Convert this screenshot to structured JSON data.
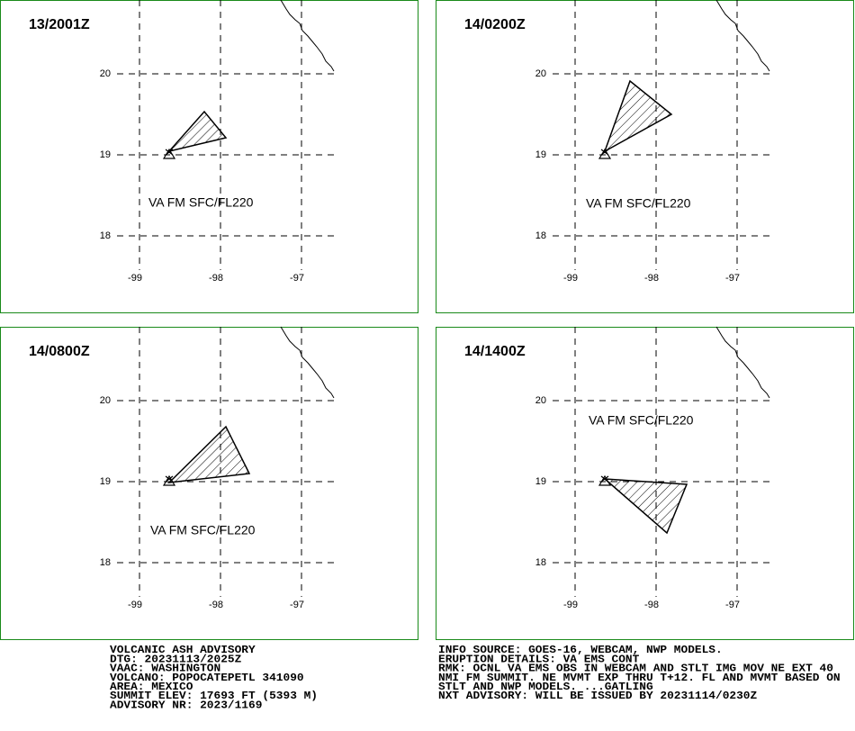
{
  "panels": [
    {
      "time": "13/2001Z",
      "label": "VA FM SFC/FL220",
      "lat_labels": [
        "20",
        "19",
        "18"
      ],
      "lon_labels": [
        "-99",
        "-98",
        "-97"
      ]
    },
    {
      "time": "14/0200Z",
      "label": "VA FM SFC/FL220",
      "lat_labels": [
        "20",
        "19",
        "18"
      ],
      "lon_labels": [
        "-99",
        "-98",
        "-97"
      ]
    },
    {
      "time": "14/0800Z",
      "label": "VA FM SFC/FL220",
      "lat_labels": [
        "20",
        "19",
        "18"
      ],
      "lon_labels": [
        "-99",
        "-98",
        "-97"
      ]
    },
    {
      "time": "14/1400Z",
      "label": "VA FM SFC/FL220",
      "lat_labels": [
        "20",
        "19",
        "18"
      ],
      "lon_labels": [
        "-99",
        "-98",
        "-97"
      ]
    }
  ],
  "footer": {
    "left": [
      "VOLCANIC ASH ADVISORY",
      "DTG: 20231113/2025Z",
      "VAAC: WASHINGTON",
      "VOLCANO: POPOCATEPETL 341090",
      "AREA: MEXICO",
      "SUMMIT ELEV: 17693 FT (5393 M)",
      "ADVISORY NR: 2023/1169"
    ],
    "right": [
      "INFO SOURCE: GOES-16, WEBCAM, NWP MODELS.",
      "ERUPTION DETAILS: VA EMS CONT",
      "RMK: OCNL VA EMS OBS IN WEBCAM AND STLT IMG MOV NE EXT 40",
      "NMI FM SUMMIT. NE MVMT EXP THRU T+12. FL AND MVMT BASED ON",
      "STLT AND NWP MODELS. ...GATLING",
      "NXT ADVISORY: WILL BE ISSUED BY 20231114/0230Z"
    ]
  }
}
